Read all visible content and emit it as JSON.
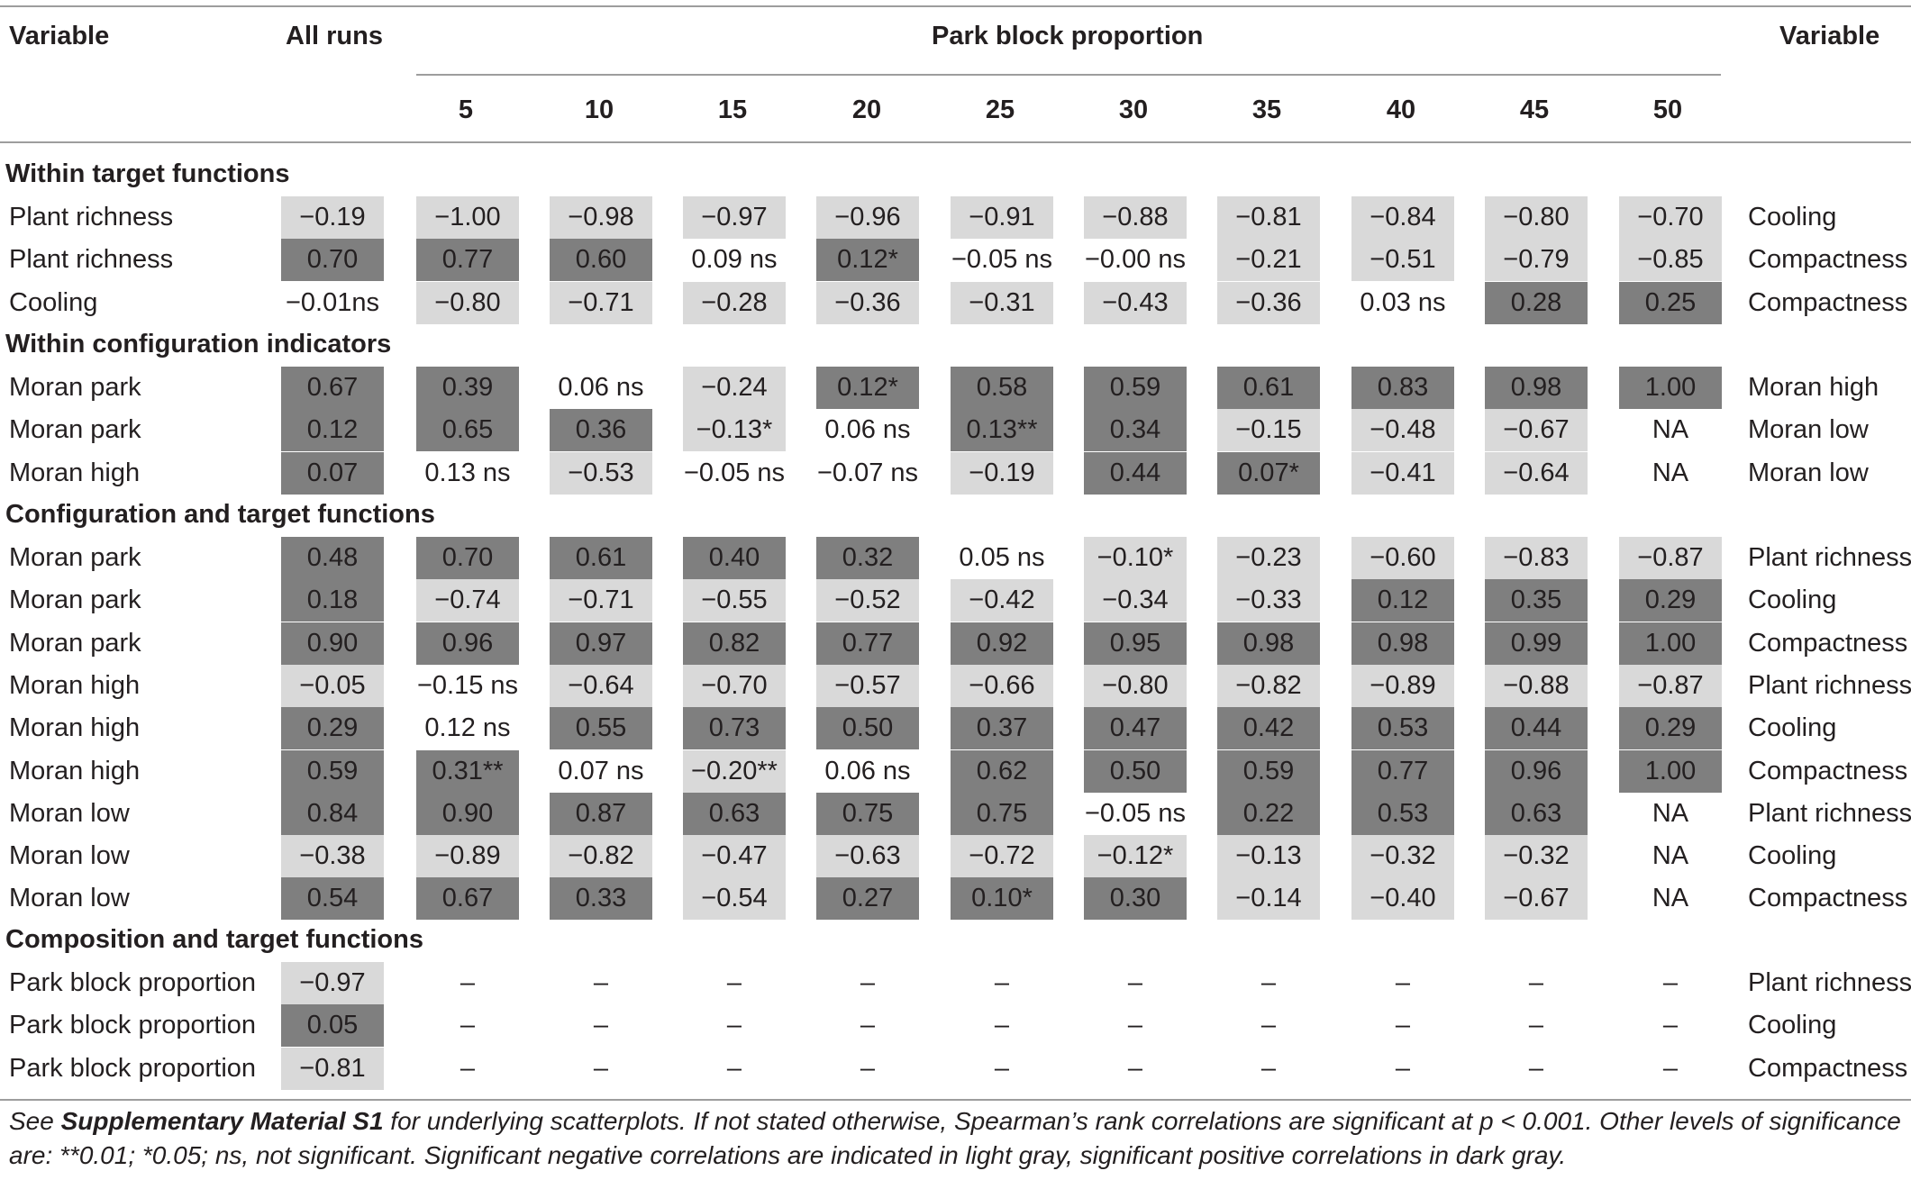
{
  "header": {
    "variable_left": "Variable",
    "all_runs": "All runs",
    "group_title": "Park block proportion",
    "variable_right": "Variable",
    "columns": [
      "5",
      "10",
      "15",
      "20",
      "25",
      "30",
      "35",
      "40",
      "45",
      "50"
    ]
  },
  "sections": [
    {
      "title": "Within target functions",
      "rows": [
        {
          "label": "Plant richness",
          "right": "Cooling",
          "values": [
            "−0.19",
            "−1.00",
            "−0.98",
            "−0.97",
            "−0.96",
            "−0.91",
            "−0.88",
            "−0.81",
            "−0.84",
            "−0.80",
            "−0.70"
          ],
          "shade": [
            "neg",
            "neg",
            "neg",
            "neg",
            "neg",
            "neg",
            "neg",
            "neg",
            "neg",
            "neg",
            "neg"
          ]
        },
        {
          "label": "Plant richness",
          "right": "Compactness",
          "values": [
            "0.70",
            "0.77",
            "0.60",
            "0.09 ns",
            "0.12*",
            "−0.05 ns",
            "−0.00 ns",
            "−0.21",
            "−0.51",
            "−0.79",
            "−0.85"
          ],
          "shade": [
            "pos",
            "pos",
            "pos",
            "ns",
            "pos",
            "ns",
            "ns",
            "neg",
            "neg",
            "neg",
            "neg"
          ]
        },
        {
          "label": "Cooling",
          "right": "Compactness",
          "values": [
            "−0.01ns",
            "−0.80",
            "−0.71",
            "−0.28",
            "−0.36",
            "−0.31",
            "−0.43",
            "−0.36",
            "0.03 ns",
            "0.28",
            "0.25"
          ],
          "shade": [
            "ns",
            "neg",
            "neg",
            "neg",
            "neg",
            "neg",
            "neg",
            "neg",
            "ns",
            "pos",
            "pos"
          ]
        }
      ]
    },
    {
      "title": "Within configuration indicators",
      "rows": [
        {
          "label": "Moran park",
          "right": "Moran high",
          "values": [
            "0.67",
            "0.39",
            "0.06 ns",
            "−0.24",
            "0.12*",
            "0.58",
            "0.59",
            "0.61",
            "0.83",
            "0.98",
            "1.00"
          ],
          "shade": [
            "pos",
            "pos",
            "ns",
            "neg",
            "pos",
            "pos",
            "pos",
            "pos",
            "pos",
            "pos",
            "pos"
          ]
        },
        {
          "label": "Moran park",
          "right": "Moran low",
          "values": [
            "0.12",
            "0.65",
            "0.36",
            "−0.13*",
            "0.06 ns",
            "0.13**",
            "0.34",
            "−0.15",
            "−0.48",
            "−0.67",
            "NA"
          ],
          "shade": [
            "pos",
            "pos",
            "pos",
            "neg",
            "ns",
            "pos",
            "pos",
            "neg",
            "neg",
            "neg",
            "na"
          ]
        },
        {
          "label": "Moran high",
          "right": "Moran low",
          "values": [
            "0.07",
            "0.13 ns",
            "−0.53",
            "−0.05 ns",
            "−0.07 ns",
            "−0.19",
            "0.44",
            "0.07*",
            "−0.41",
            "−0.64",
            "NA"
          ],
          "shade": [
            "pos",
            "ns",
            "neg",
            "ns",
            "ns",
            "neg",
            "pos",
            "pos",
            "neg",
            "neg",
            "na"
          ]
        }
      ]
    },
    {
      "title": "Configuration and target functions",
      "rows": [
        {
          "label": "Moran park",
          "right": "Plant richness",
          "values": [
            "0.48",
            "0.70",
            "0.61",
            "0.40",
            "0.32",
            "0.05 ns",
            "−0.10*",
            "−0.23",
            "−0.60",
            "−0.83",
            "−0.87"
          ],
          "shade": [
            "pos",
            "pos",
            "pos",
            "pos",
            "pos",
            "ns",
            "neg",
            "neg",
            "neg",
            "neg",
            "neg"
          ]
        },
        {
          "label": "Moran park",
          "right": "Cooling",
          "values": [
            "0.18",
            "−0.74",
            "−0.71",
            "−0.55",
            "−0.52",
            "−0.42",
            "−0.34",
            "−0.33",
            "0.12",
            "0.35",
            "0.29"
          ],
          "shade": [
            "pos",
            "neg",
            "neg",
            "neg",
            "neg",
            "neg",
            "neg",
            "neg",
            "pos",
            "pos",
            "pos"
          ]
        },
        {
          "label": "Moran park",
          "right": "Compactness",
          "values": [
            "0.90",
            "0.96",
            "0.97",
            "0.82",
            "0.77",
            "0.92",
            "0.95",
            "0.98",
            "0.98",
            "0.99",
            "1.00"
          ],
          "shade": [
            "pos",
            "pos",
            "pos",
            "pos",
            "pos",
            "pos",
            "pos",
            "pos",
            "pos",
            "pos",
            "pos"
          ]
        },
        {
          "label": "Moran high",
          "right": "Plant richness",
          "values": [
            "−0.05",
            "−0.15 ns",
            "−0.64",
            "−0.70",
            "−0.57",
            "−0.66",
            "−0.80",
            "−0.82",
            "−0.89",
            "−0.88",
            "−0.87"
          ],
          "shade": [
            "neg",
            "ns",
            "neg",
            "neg",
            "neg",
            "neg",
            "neg",
            "neg",
            "neg",
            "neg",
            "neg"
          ]
        },
        {
          "label": "Moran high",
          "right": "Cooling",
          "values": [
            "0.29",
            "0.12 ns",
            "0.55",
            "0.73",
            "0.50",
            "0.37",
            "0.47",
            "0.42",
            "0.53",
            "0.44",
            "0.29"
          ],
          "shade": [
            "pos",
            "ns",
            "pos",
            "pos",
            "pos",
            "pos",
            "pos",
            "pos",
            "pos",
            "pos",
            "pos"
          ]
        },
        {
          "label": "Moran high",
          "right": "Compactness",
          "values": [
            "0.59",
            "0.31**",
            "0.07 ns",
            "−0.20**",
            "0.06 ns",
            "0.62",
            "0.50",
            "0.59",
            "0.77",
            "0.96",
            "1.00"
          ],
          "shade": [
            "pos",
            "pos",
            "ns",
            "neg",
            "ns",
            "pos",
            "pos",
            "pos",
            "pos",
            "pos",
            "pos"
          ]
        },
        {
          "label": "Moran low",
          "right": "Plant richness",
          "values": [
            "0.84",
            "0.90",
            "0.87",
            "0.63",
            "0.75",
            "0.75",
            "−0.05 ns",
            "0.22",
            "0.53",
            "0.63",
            "NA"
          ],
          "shade": [
            "pos",
            "pos",
            "pos",
            "pos",
            "pos",
            "pos",
            "ns",
            "pos",
            "pos",
            "pos",
            "na"
          ]
        },
        {
          "label": "Moran low",
          "right": "Cooling",
          "values": [
            "−0.38",
            "−0.89",
            "−0.82",
            "−0.47",
            "−0.63",
            "−0.72",
            "−0.12*",
            "−0.13",
            "−0.32",
            "−0.32",
            "NA"
          ],
          "shade": [
            "neg",
            "neg",
            "neg",
            "neg",
            "neg",
            "neg",
            "neg",
            "neg",
            "neg",
            "neg",
            "na"
          ]
        },
        {
          "label": "Moran low",
          "right": "Compactness",
          "values": [
            "0.54",
            "0.67",
            "0.33",
            "−0.54",
            "0.27",
            "0.10*",
            "0.30",
            "−0.14",
            "−0.40",
            "−0.67",
            "NA"
          ],
          "shade": [
            "pos",
            "pos",
            "pos",
            "neg",
            "pos",
            "pos",
            "pos",
            "neg",
            "neg",
            "neg",
            "na"
          ]
        }
      ]
    },
    {
      "title": "Composition and target functions",
      "rows": [
        {
          "label": "Park block proportion",
          "right": "Plant richness",
          "values": [
            "−0.97",
            "–",
            "–",
            "–",
            "–",
            "–",
            "–",
            "–",
            "–",
            "–",
            "–"
          ],
          "shade": [
            "neg",
            "dash",
            "dash",
            "dash",
            "dash",
            "dash",
            "dash",
            "dash",
            "dash",
            "dash",
            "dash"
          ]
        },
        {
          "label": "Park block proportion",
          "right": "Cooling",
          "values": [
            "0.05",
            "–",
            "–",
            "–",
            "–",
            "–",
            "–",
            "–",
            "–",
            "–",
            "–"
          ],
          "shade": [
            "pos",
            "dash",
            "dash",
            "dash",
            "dash",
            "dash",
            "dash",
            "dash",
            "dash",
            "dash",
            "dash"
          ]
        },
        {
          "label": "Park block proportion",
          "right": "Compactness",
          "values": [
            "−0.81",
            "–",
            "–",
            "–",
            "–",
            "–",
            "–",
            "–",
            "–",
            "–",
            "–"
          ],
          "shade": [
            "neg",
            "dash",
            "dash",
            "dash",
            "dash",
            "dash",
            "dash",
            "dash",
            "dash",
            "dash",
            "dash"
          ]
        }
      ]
    }
  ],
  "footnote": {
    "see": "See ",
    "supplementary": "Supplementary Material S1",
    "text": " for underlying scatterplots. If not stated otherwise, Spearman’s rank correlations are significant at p < 0.001. Other levels of significance are: **0.01; *0.05; ns, not significant. Significant negative correlations are indicated in light gray, significant positive correlations in dark gray."
  }
}
